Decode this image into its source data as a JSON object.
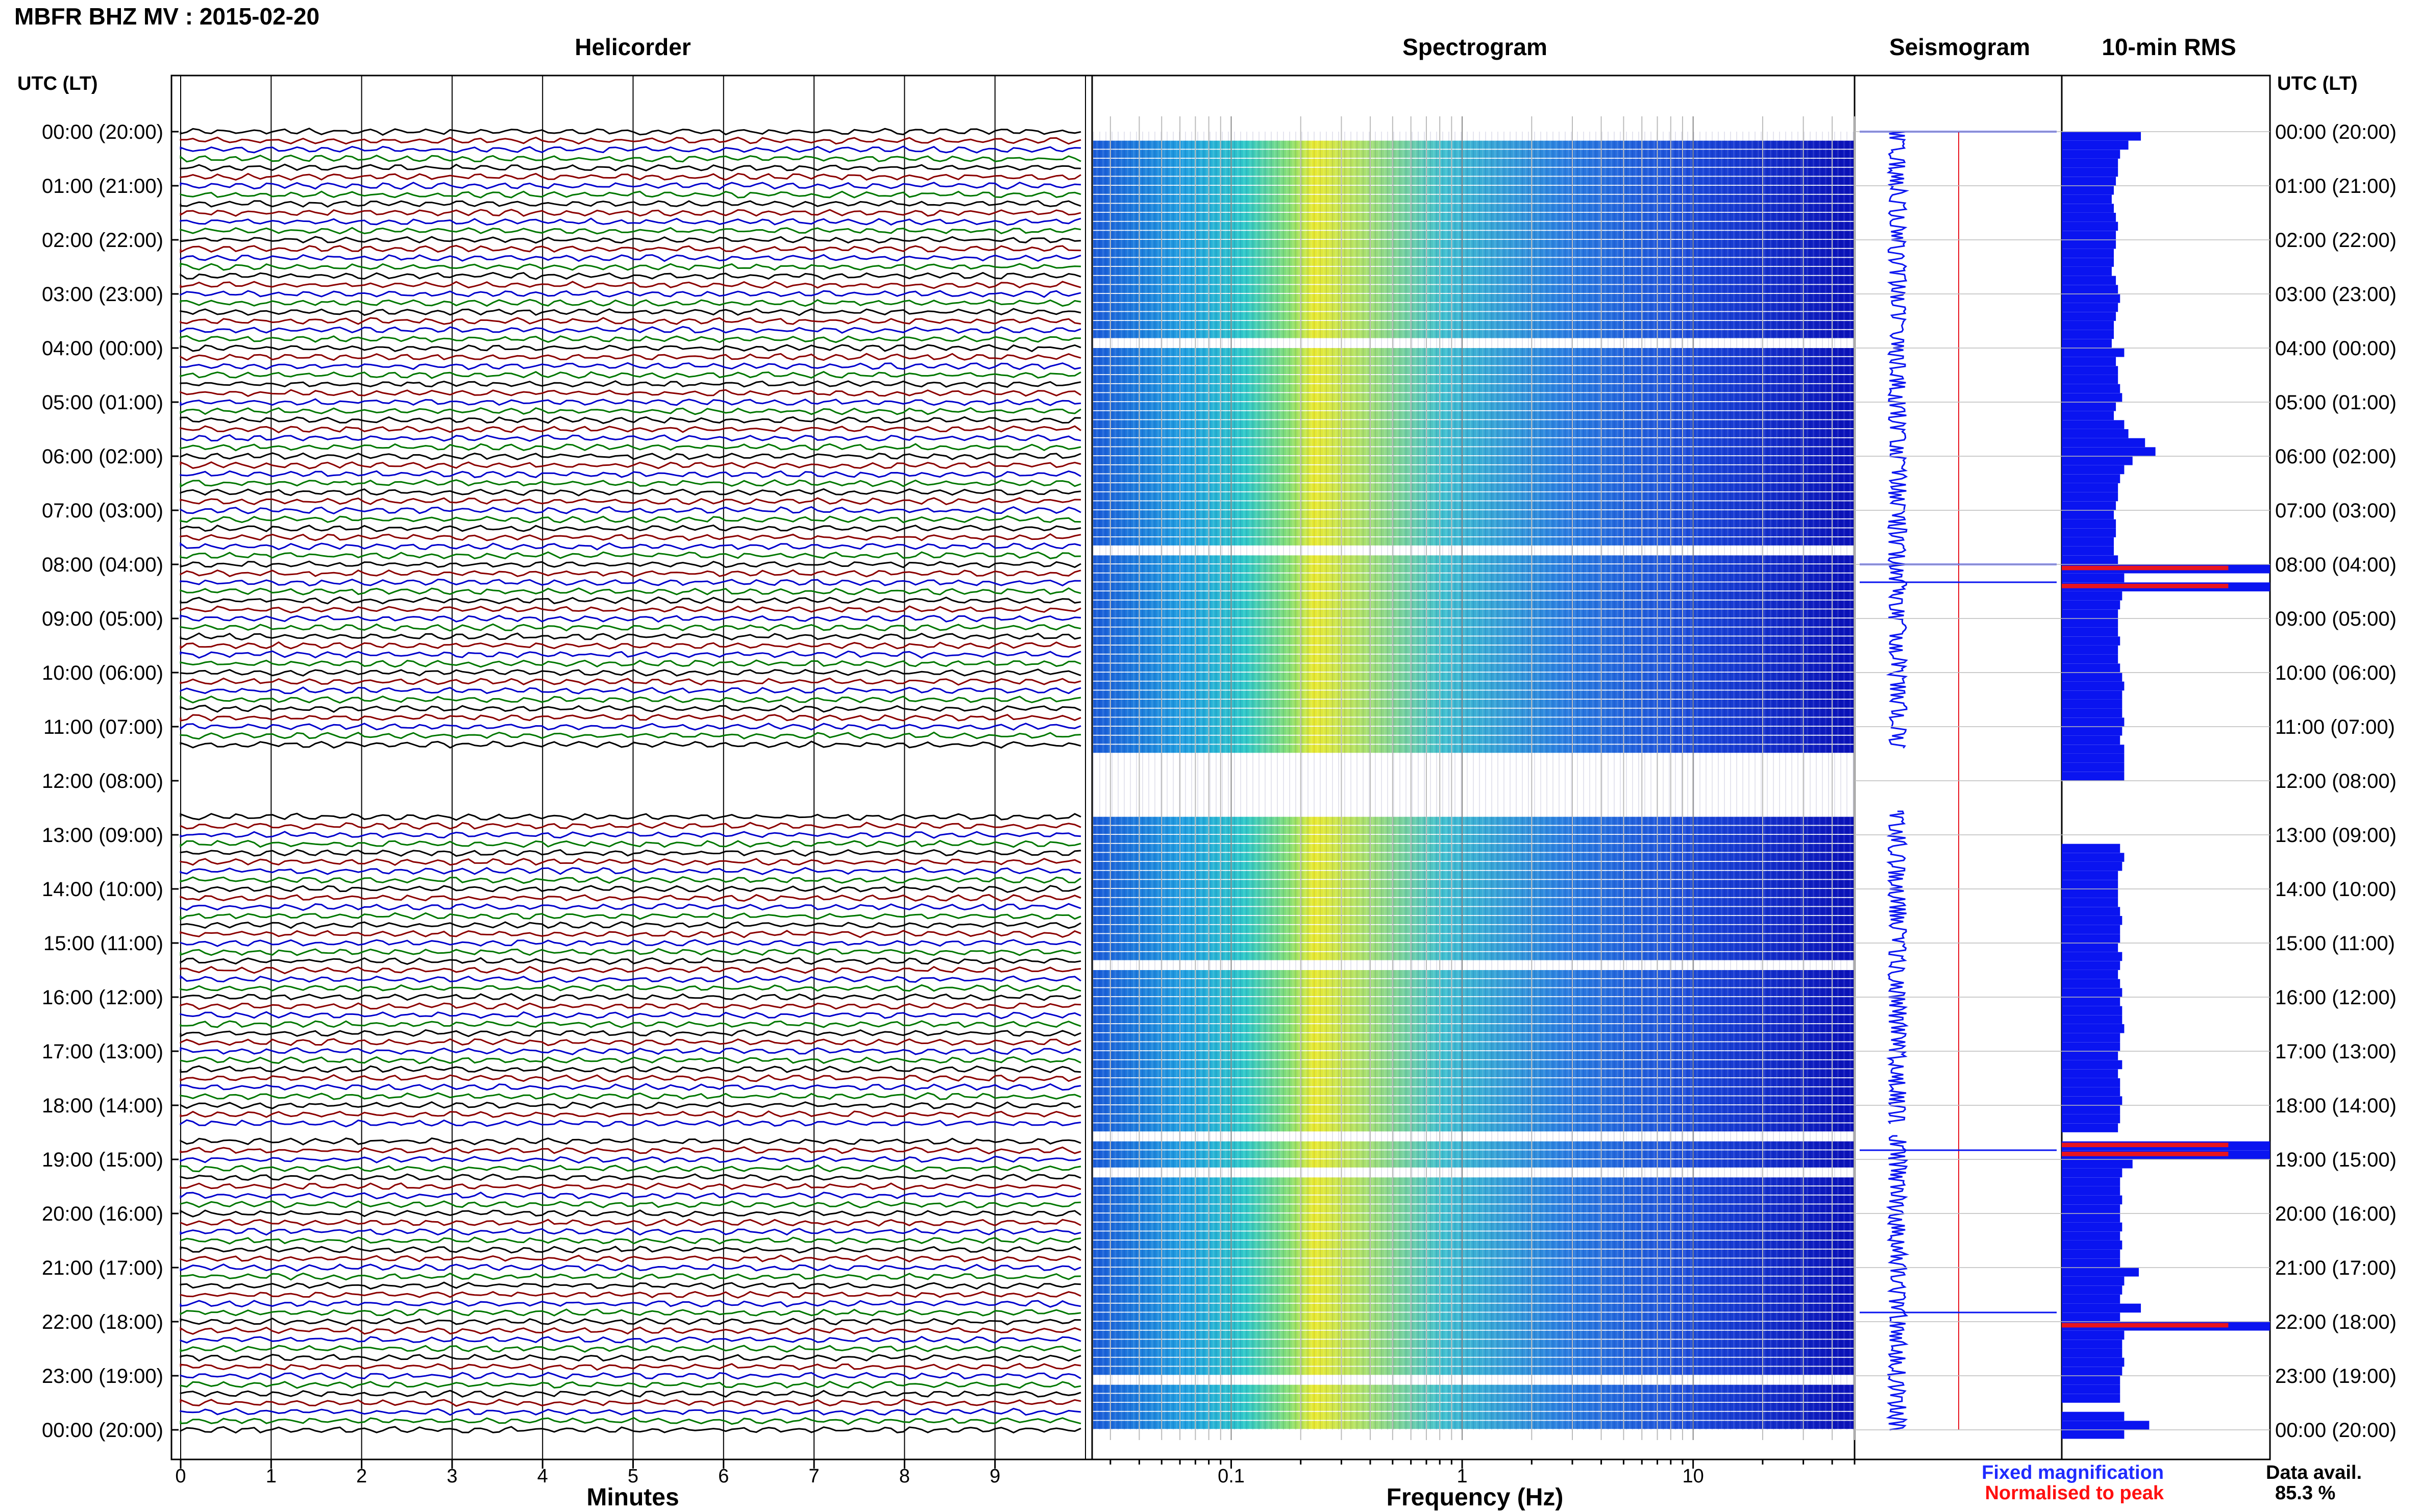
{
  "title": "MBFR BHZ MV : 2015-02-20",
  "panels": {
    "helicorder": "Helicorder",
    "spectrogram": "Spectrogram",
    "seismogram": "Seismogram",
    "rms": "10-min RMS"
  },
  "time_axis_label": "UTC (LT)",
  "time_labels": [
    "00:00 (20:00)",
    "01:00 (21:00)",
    "02:00 (22:00)",
    "03:00 (23:00)",
    "04:00 (00:00)",
    "05:00 (01:00)",
    "06:00 (02:00)",
    "07:00 (03:00)",
    "08:00 (04:00)",
    "09:00 (05:00)",
    "10:00 (06:00)",
    "11:00 (07:00)",
    "12:00 (08:00)",
    "13:00 (09:00)",
    "14:00 (10:00)",
    "15:00 (11:00)",
    "16:00 (12:00)",
    "17:00 (13:00)",
    "18:00 (14:00)",
    "19:00 (15:00)",
    "20:00 (16:00)",
    "21:00 (17:00)",
    "22:00 (18:00)",
    "23:00 (19:00)",
    "00:00 (20:00)"
  ],
  "minutes_axis": {
    "label": "Minutes",
    "ticks": [
      "0",
      "1",
      "2",
      "3",
      "4",
      "5",
      "6",
      "7",
      "8",
      "9"
    ]
  },
  "frequency_axis": {
    "label": "Frequency (Hz)",
    "scale": "log",
    "ticks": [
      "0.1",
      "1",
      "10"
    ],
    "range": [
      0.025,
      50
    ]
  },
  "legend": {
    "fixed": "Fixed magnification",
    "normalised": "Normalised to peak"
  },
  "data_avail": {
    "label": "Data avail.",
    "value": "85.3 %"
  },
  "colors": {
    "trace_cycle": [
      "#000000",
      "#8b0000",
      "#0000cc",
      "#007700"
    ],
    "rms_bar": "#0a14f0",
    "rms_peak": "#e8141e",
    "legend_fixed": "#1f2bff",
    "legend_normalised": "#ff1010"
  },
  "chart_data": {
    "type": "heatmap",
    "description_free": true,
    "data_gaps_utc_hours": [
      [
        11.4,
        12.55
      ],
      [
        18.35,
        18.55
      ]
    ],
    "rms_peaks": [
      {
        "time": "00:00",
        "level": "high"
      },
      {
        "time": "08:00",
        "level": "high"
      },
      {
        "time": "08:20",
        "level": "high"
      },
      {
        "time": "18:50",
        "level": "high"
      },
      {
        "time": "21:50",
        "level": "high"
      }
    ],
    "rms_values": [
      0.38,
      0.32,
      0.28,
      0.27,
      0.27,
      0.26,
      0.25,
      0.24,
      0.25,
      0.26,
      0.27,
      0.26,
      0.26,
      0.25,
      0.25,
      0.24,
      0.26,
      0.27,
      0.28,
      0.27,
      0.26,
      0.25,
      0.25,
      0.24,
      0.3,
      0.26,
      0.27,
      0.27,
      0.28,
      0.29,
      0.26,
      0.25,
      0.3,
      0.32,
      0.4,
      0.45,
      0.34,
      0.3,
      0.28,
      0.27,
      0.27,
      0.26,
      0.25,
      0.26,
      0.26,
      0.25,
      0.25,
      0.27,
      1.0,
      0.3,
      1.0,
      0.29,
      0.28,
      0.27,
      0.27,
      0.27,
      0.28,
      0.27,
      0.27,
      0.28,
      0.29,
      0.3,
      0.29,
      0.29,
      0.29,
      0.3,
      0.29,
      0.28,
      0.3,
      0.3,
      0.3,
      0.3,
      0.0,
      0.0,
      0.0,
      0.0,
      0.0,
      0.0,
      0.0,
      0.28,
      0.3,
      0.29,
      0.27,
      0.27,
      0.27,
      0.27,
      0.28,
      0.29,
      0.28,
      0.28,
      0.27,
      0.29,
      0.28,
      0.27,
      0.28,
      0.29,
      0.28,
      0.29,
      0.29,
      0.3,
      0.28,
      0.28,
      0.27,
      0.29,
      0.27,
      0.28,
      0.28,
      0.29,
      0.28,
      0.28,
      0.27,
      0.0,
      1.0,
      1.0,
      0.34,
      0.29,
      0.28,
      0.28,
      0.29,
      0.28,
      0.28,
      0.29,
      0.28,
      0.29,
      0.28,
      0.28,
      0.37,
      0.3,
      0.29,
      0.28,
      0.38,
      0.28,
      1.0,
      0.3,
      0.29,
      0.29,
      0.3,
      0.29,
      0.28,
      0.28,
      0.28,
      0.0,
      0.3,
      0.42,
      0.3
    ]
  }
}
